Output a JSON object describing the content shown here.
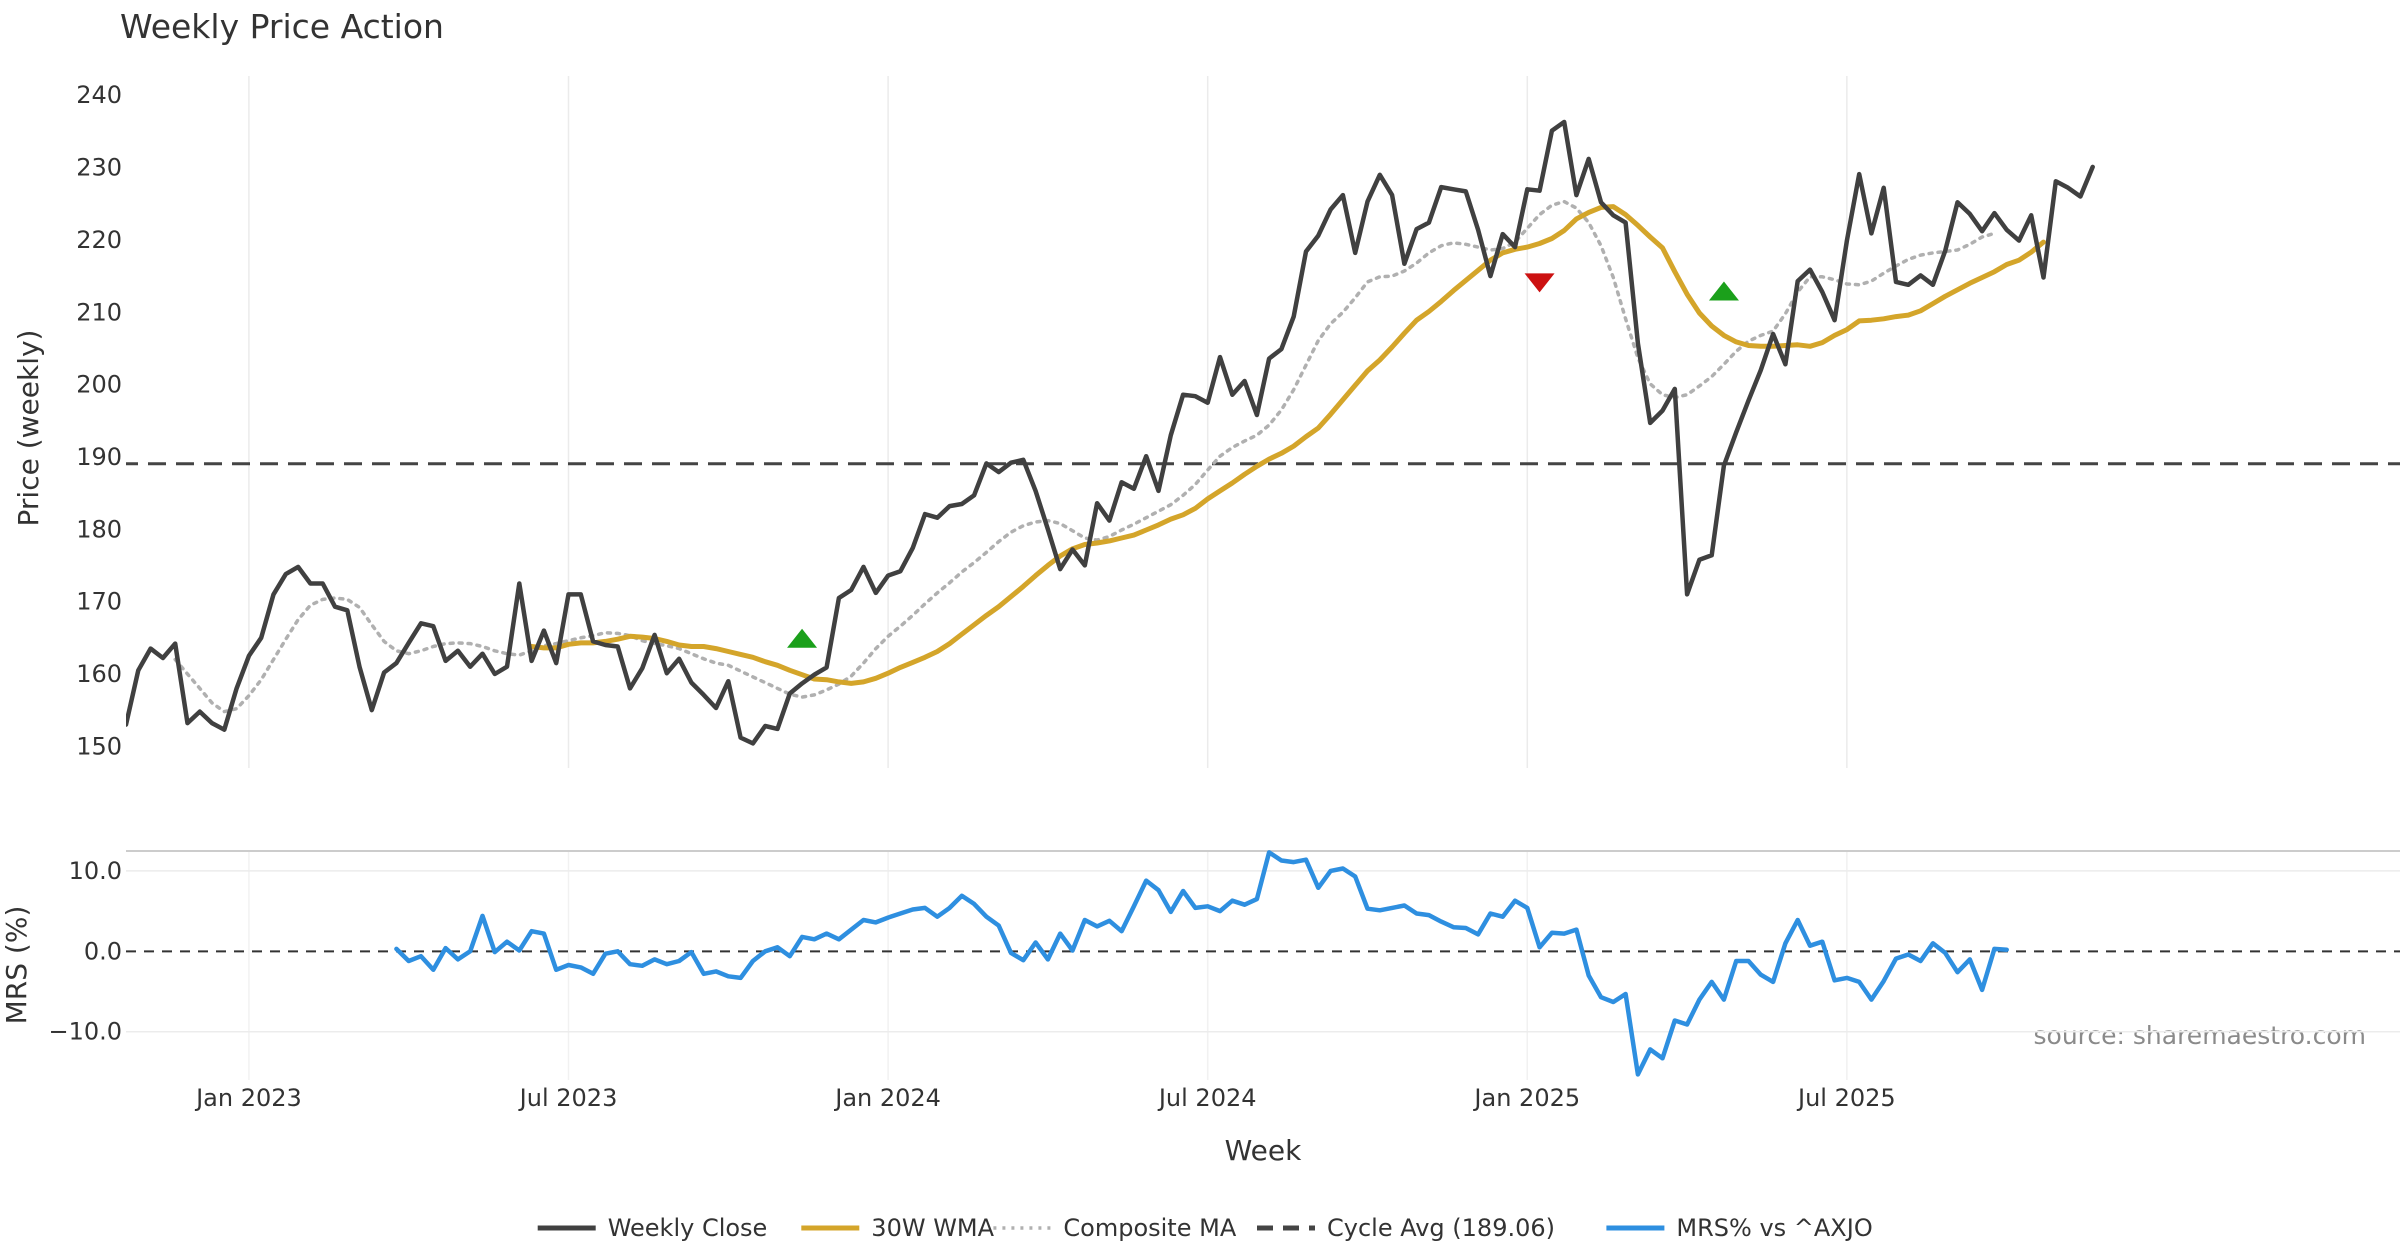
{
  "chart_data": [
    {
      "type": "line",
      "title": "Weekly Price Action",
      "ylabel": "Price (weekly)",
      "ylim": [
        147,
        241
      ],
      "yticks": [
        150,
        160,
        170,
        180,
        190,
        200,
        210,
        220,
        230,
        240
      ],
      "week_range": [
        0,
        185
      ],
      "grid": true,
      "series": [
        {
          "name": "Weekly Close",
          "color": "#404040",
          "style": "solid",
          "start_week": 0,
          "values": [
            153,
            160.5,
            163.5,
            162.2,
            164.2,
            153.2,
            154.8,
            153.2,
            152.3,
            158,
            162.5,
            165,
            171,
            173.8,
            174.8,
            172.5,
            172.5,
            169.3,
            168.8,
            161,
            155,
            160.2,
            161.5,
            164.3,
            167,
            166.6,
            161.8,
            163.2,
            161,
            162.8,
            160,
            161,
            172.5,
            161.8,
            166,
            161.5,
            171,
            171,
            164.5,
            164,
            163.8,
            158,
            160.8,
            165.4,
            160.1,
            162.1,
            158.8,
            157.1,
            155.3,
            159,
            151.2,
            150.4,
            152.8,
            152.4,
            157.3,
            158.7,
            159.9,
            160.9,
            170.5,
            171.6,
            174.8,
            171.2,
            173.6,
            174.2,
            177.4,
            182.1,
            181.6,
            183.2,
            183.5,
            184.7,
            189.1,
            187.9,
            189.2,
            189.6,
            185.3,
            180,
            174.5,
            177.2,
            175,
            183.6,
            181.2,
            186.5,
            185.6,
            190.1,
            185.3,
            193,
            198.6,
            198.4,
            197.5,
            203.8,
            198.6,
            200.5,
            195.8,
            203.6,
            204.9,
            209.4,
            218.4,
            220.6,
            224.2,
            226.2,
            218.2,
            225.3,
            229,
            226.2,
            216.7,
            221.5,
            222.4,
            227.3,
            227,
            226.7,
            221.4,
            215,
            220.8,
            219,
            227,
            226.8,
            235.1,
            236.3,
            226.2,
            231.2,
            225.2,
            223.4,
            222.4,
            205.7,
            194.7,
            196.4,
            199.4,
            171,
            175.8,
            176.4,
            188.8,
            193.4,
            197.8,
            202,
            207,
            202.8,
            214.3,
            215.9,
            212.8,
            208.9,
            219.9,
            229.1,
            220.9,
            227.2,
            214.2,
            213.8,
            215.1,
            213.8,
            218.5,
            225.2,
            223.6,
            221.2,
            223.7,
            221.4,
            219.9,
            223.4,
            214.8,
            228.1,
            227.2,
            226,
            230.1
          ]
        },
        {
          "name": "30W WMA",
          "color": "#D4A52A",
          "style": "solid",
          "start_week": 33,
          "values": [
            163.8,
            163.6,
            163.6,
            164.1,
            164.3,
            164.3,
            164.5,
            164.8,
            165.2,
            165.1,
            164.9,
            164.5,
            164,
            163.8,
            163.8,
            163.5,
            163.1,
            162.7,
            162.3,
            161.7,
            161.2,
            160.5,
            159.9,
            159.3,
            159.2,
            158.9,
            158.7,
            158.9,
            159.4,
            160.1,
            160.9,
            161.6,
            162.3,
            163.1,
            164.2,
            165.5,
            166.8,
            168.1,
            169.3,
            170.7,
            172.1,
            173.6,
            175,
            176.3,
            177.3,
            177.9,
            178.1,
            178.4,
            178.8,
            179.2,
            179.9,
            180.6,
            181.4,
            182,
            182.9,
            184.2,
            185.3,
            186.4,
            187.6,
            188.7,
            189.7,
            190.5,
            191.5,
            192.8,
            194,
            195.9,
            197.9,
            199.9,
            201.9,
            203.4,
            205.2,
            207.1,
            208.9,
            210.1,
            211.5,
            213,
            214.4,
            215.8,
            217.2,
            218.2,
            218.7,
            219,
            219.5,
            220.2,
            221.3,
            222.9,
            223.8,
            224.5,
            224.6,
            223.5,
            222,
            220.4,
            218.9,
            215.6,
            212.5,
            209.9,
            208.1,
            206.8,
            205.9,
            205.4,
            205.3,
            205.3,
            205.4,
            205.5,
            205.3,
            205.8,
            206.8,
            207.6,
            208.8,
            208.9,
            209.1,
            209.4,
            209.6,
            210.2,
            211.2,
            212.2,
            213.1,
            214,
            214.8,
            215.6,
            216.6,
            217.2,
            218.3,
            219.7
          ]
        },
        {
          "name": "Composite MA",
          "color": "#B0B0B0",
          "style": "dotted",
          "start_week": 4,
          "values": [
            162,
            160,
            158,
            156,
            154.8,
            155.2,
            157,
            159.2,
            162,
            164.8,
            167.5,
            169.5,
            170.3,
            170.5,
            170.3,
            169.2,
            166.8,
            164.5,
            163.2,
            162.8,
            163.2,
            163.8,
            164.2,
            164.3,
            164.2,
            163.8,
            163.2,
            162.8,
            162.6,
            163.2,
            163.9,
            164.2,
            164.6,
            165,
            165.3,
            165.7,
            165.6,
            165.3,
            164.6,
            164.2,
            163.9,
            163.5,
            162.8,
            162.1,
            161.5,
            161.2,
            160.4,
            159.6,
            158.8,
            158,
            157.2,
            156.8,
            157.1,
            157.8,
            158.6,
            159.7,
            161.5,
            163.5,
            165.2,
            166.6,
            168.1,
            169.7,
            171.2,
            172.6,
            174.1,
            175.4,
            176.8,
            178.3,
            179.6,
            180.5,
            181,
            181.2,
            180.8,
            179.8,
            178.8,
            178.5,
            179,
            179.9,
            180.7,
            181.6,
            182.5,
            183.4,
            184.7,
            186.2,
            188.2,
            190.1,
            191.3,
            192.2,
            193,
            194.4,
            196.5,
            199.3,
            202.7,
            206.1,
            208.4,
            210,
            212,
            214.2,
            214.9,
            215,
            215.7,
            216.8,
            218.2,
            219.2,
            219.6,
            219.4,
            219,
            218.6,
            218.8,
            219.7,
            221.6,
            223.5,
            224.8,
            225.3,
            224.4,
            222.4,
            219.2,
            214.8,
            209.1,
            203.7,
            200.1,
            198.6,
            198.2,
            198.6,
            199.8,
            201.1,
            202.8,
            204.6,
            206,
            206.8,
            207.4,
            209.8,
            212.8,
            214.9,
            214.9,
            214.5,
            213.9,
            213.8,
            214.3,
            215.4,
            216.4,
            217.3,
            217.9,
            218.2,
            218.4,
            218.6,
            219.4,
            220.4,
            220.9
          ]
        },
        {
          "name": "Cycle Avg (189.06)",
          "color": "#444444",
          "style": "dashed",
          "constant": 189.06
        }
      ],
      "signals": [
        {
          "type": "buy",
          "week": 55,
          "price": 164.8,
          "color": "#1BA01B"
        },
        {
          "type": "sell",
          "week": 115,
          "price": 214.2,
          "color": "#CC1111"
        },
        {
          "type": "buy",
          "week": 130,
          "price": 212.8,
          "color": "#1BA01B"
        }
      ]
    },
    {
      "type": "line",
      "ylabel": "MRS (%)",
      "xlabel": "Week",
      "ylim": [
        -16,
        12.6
      ],
      "yticks": [
        {
          "value": 10,
          "label": "10.0"
        },
        {
          "value": 0,
          "label": "0.0"
        },
        {
          "value": -10,
          "label": "−10.0"
        }
      ],
      "zero_line": true,
      "series": [
        {
          "name": "MRS% vs ^AXJO",
          "color": "#2E8FE0",
          "style": "solid",
          "start_week": 22,
          "values": [
            0.3,
            -1.2,
            -0.6,
            -2.3,
            0.4,
            -1,
            0,
            4.4,
            -0.1,
            1.2,
            0.1,
            2.5,
            2.2,
            -2.3,
            -1.7,
            -2,
            -2.8,
            -0.3,
            0,
            -1.6,
            -1.8,
            -1,
            -1.6,
            -1.2,
            -0.1,
            -2.8,
            -2.5,
            -3.1,
            -3.3,
            -1.2,
            0,
            0.5,
            -0.6,
            1.8,
            1.5,
            2.2,
            1.5,
            2.7,
            3.9,
            3.6,
            4.2,
            4.7,
            5.2,
            5.4,
            4.3,
            5.4,
            6.9,
            5.9,
            4.3,
            3.2,
            -0.2,
            -1.1,
            1.1,
            -1,
            2.2,
            0.1,
            3.9,
            3.1,
            3.8,
            2.5,
            5.6,
            8.8,
            7.6,
            4.9,
            7.5,
            5.4,
            5.6,
            5,
            6.3,
            5.8,
            6.5,
            12.3,
            11.3,
            11.1,
            11.4,
            7.9,
            10,
            10.3,
            9.3,
            5.3,
            5.1,
            5.4,
            5.7,
            4.7,
            4.5,
            3.7,
            3,
            2.9,
            2.1,
            4.7,
            4.3,
            6.3,
            5.4,
            0.5,
            2.3,
            2.2,
            2.7,
            -3,
            -5.7,
            -6.3,
            -5.3,
            -15.3,
            -12.2,
            -13.3,
            -8.6,
            -9.1,
            -6,
            -3.8,
            -6,
            -1.2,
            -1.2,
            -2.9,
            -3.8,
            1,
            3.9,
            0.7,
            1.2,
            -3.6,
            -3.3,
            -3.8,
            -6,
            -3.7,
            -0.9,
            -0.4,
            -1.2,
            1,
            -0.2,
            -2.6,
            -1,
            -4.8,
            0.3,
            0.2
          ]
        }
      ],
      "annotations": [
        "source: sharemaestro.com"
      ]
    }
  ],
  "x_axis": {
    "label": "Week",
    "ticks": [
      {
        "label": "Jan 2023",
        "week": 10
      },
      {
        "label": "Jul 2023",
        "week": 36
      },
      {
        "label": "Jan 2024",
        "week": 62
      },
      {
        "label": "Jul 2024",
        "week": 88
      },
      {
        "label": "Jan 2025",
        "week": 114
      },
      {
        "label": "Jul 2025",
        "week": 140
      }
    ]
  },
  "legend": {
    "placement": "bottom-center",
    "items": [
      {
        "label": "Weekly Close",
        "color": "#404040",
        "style": "solid"
      },
      {
        "label": "30W WMA",
        "color": "#D4A52A",
        "style": "solid"
      },
      {
        "label": "Composite MA",
        "color": "#B0B0B0",
        "style": "dotted"
      },
      {
        "label": "Cycle Avg (189.06)",
        "color": "#444444",
        "style": "dashed"
      },
      {
        "label": "MRS% vs ^AXJO",
        "color": "#2E8FE0",
        "style": "solid"
      }
    ]
  }
}
